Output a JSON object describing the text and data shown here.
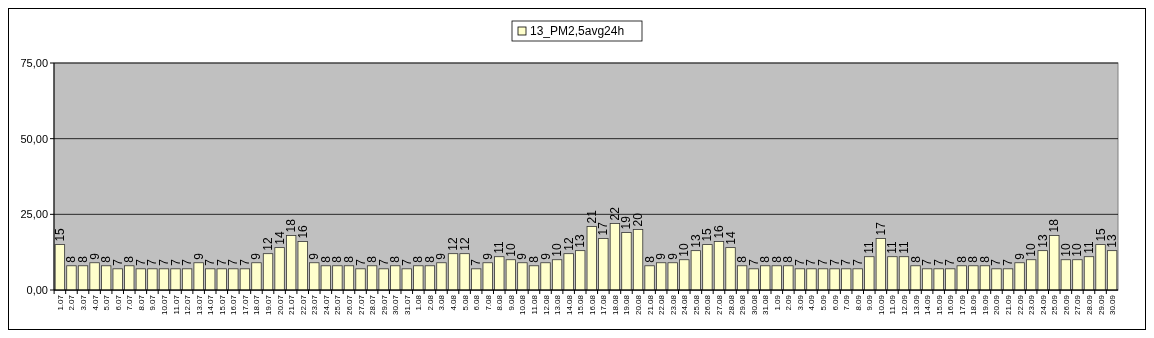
{
  "chart_data": {
    "type": "bar",
    "categories": [
      "1.07",
      "2.07",
      "3.07",
      "4.07",
      "5.07",
      "6.07",
      "7.07",
      "8.07",
      "9.07",
      "10.07",
      "11.07",
      "12.07",
      "13.07",
      "14.07",
      "15.07",
      "16.07",
      "17.07",
      "18.07",
      "19.07",
      "20.07",
      "21.07",
      "22.07",
      "23.07",
      "24.07",
      "25.07",
      "26.07",
      "27.07",
      "28.07",
      "29.07",
      "30.07",
      "31.07",
      "1.08",
      "2.08",
      "3.08",
      "4.08",
      "5.08",
      "6.08",
      "7.08",
      "8.08",
      "9.08",
      "10.08",
      "11.08",
      "12.08",
      "13.08",
      "14.08",
      "15.08",
      "16.08",
      "17.08",
      "18.08",
      "19.08",
      "20.08",
      "21.08",
      "22.08",
      "23.08",
      "24.08",
      "25.08",
      "26.08",
      "27.08",
      "28.08",
      "29.08",
      "30.08",
      "31.08",
      "1.09",
      "2.09",
      "3.09",
      "4.09",
      "5.09",
      "6.09",
      "7.09",
      "8.09",
      "9.09",
      "10.09",
      "11.09",
      "12.09",
      "13.09",
      "14.09",
      "15.09",
      "16.09",
      "17.09",
      "18.09",
      "19.09",
      "20.09",
      "21.09",
      "22.09",
      "23.09",
      "24.09",
      "25.09",
      "26.09",
      "27.09",
      "28.09",
      "29.09",
      "30.09"
    ],
    "series": [
      {
        "name": "13_PM2,5avg24h",
        "color": "#ffffcc",
        "values": [
          15,
          8,
          8,
          9,
          8,
          7,
          8,
          7,
          7,
          7,
          7,
          7,
          9,
          7,
          7,
          7,
          7,
          9,
          12,
          14,
          18,
          16,
          9,
          8,
          8,
          8,
          7,
          8,
          7,
          8,
          7,
          8,
          8,
          9,
          12,
          12,
          7,
          9,
          11,
          10,
          9,
          8,
          9,
          10,
          12,
          13,
          21,
          17,
          22,
          19,
          20,
          8,
          9,
          9,
          10,
          13,
          15,
          16,
          14,
          8,
          7,
          8,
          8,
          8,
          7,
          7,
          7,
          7,
          7,
          7,
          11,
          17,
          11,
          11,
          8,
          7,
          7,
          7,
          8,
          8,
          8,
          7,
          7,
          9,
          10,
          13,
          18,
          10,
          10,
          11,
          15,
          13
        ]
      }
    ],
    "ylim": [
      0,
      75
    ],
    "yticks": [
      {
        "value": 0,
        "label": "0,00"
      },
      {
        "value": 25,
        "label": "25,00"
      },
      {
        "value": 50,
        "label": "50,00"
      },
      {
        "value": 75,
        "label": "75,00"
      }
    ],
    "grid": "y",
    "legend": "top",
    "data_labels": true
  }
}
